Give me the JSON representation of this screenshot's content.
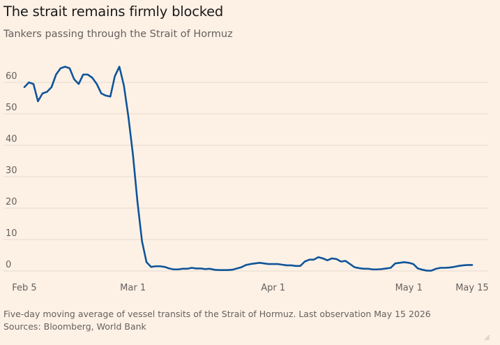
{
  "header": {
    "title": "The strait remains firmly blocked",
    "subtitle": "Tankers passing through the Strait of Hormuz"
  },
  "footer": {
    "note": "Five-day moving average of vessel transits of the Strait of Hormuz. Last observation May 15 2026",
    "sources": "Sources: Bloomberg, World Bank"
  },
  "colors": {
    "background": "#fdf1e6",
    "line": "#0f5499",
    "gridline": "#e6d9ce",
    "text": "#66605c"
  },
  "chart_data": {
    "type": "line",
    "title": "The strait remains firmly blocked",
    "subtitle": "Tankers passing through the Strait of Hormuz",
    "xlabel": "",
    "ylabel": "",
    "ylim": [
      0,
      65
    ],
    "xlim": [
      "2026-02-05",
      "2026-05-15"
    ],
    "grid": "horizontal",
    "legend": "none",
    "x_ticks": [
      {
        "date": "2026-02-05",
        "label": "Feb 5"
      },
      {
        "date": "2026-03-01",
        "label": "Mar 1"
      },
      {
        "date": "2026-04-01",
        "label": "Apr 1"
      },
      {
        "date": "2026-05-01",
        "label": "May 1"
      },
      {
        "date": "2026-05-15",
        "label": "May 15"
      }
    ],
    "y_ticks": [
      0,
      10,
      20,
      30,
      40,
      50,
      60
    ],
    "series": [
      {
        "name": "",
        "color": "#0f5499",
        "x": [
          "2026-02-05",
          "2026-02-06",
          "2026-02-07",
          "2026-02-08",
          "2026-02-09",
          "2026-02-10",
          "2026-02-11",
          "2026-02-12",
          "2026-02-13",
          "2026-02-14",
          "2026-02-15",
          "2026-02-16",
          "2026-02-17",
          "2026-02-18",
          "2026-02-19",
          "2026-02-20",
          "2026-02-21",
          "2026-02-22",
          "2026-02-23",
          "2026-02-24",
          "2026-02-25",
          "2026-02-26",
          "2026-02-27",
          "2026-02-28",
          "2026-03-01",
          "2026-03-02",
          "2026-03-03",
          "2026-03-04",
          "2026-03-05",
          "2026-03-06",
          "2026-03-07",
          "2026-03-08",
          "2026-03-09",
          "2026-03-10",
          "2026-03-11",
          "2026-03-12",
          "2026-03-13",
          "2026-03-14",
          "2026-03-15",
          "2026-03-16",
          "2026-03-17",
          "2026-03-18",
          "2026-03-19",
          "2026-03-20",
          "2026-03-21",
          "2026-03-22",
          "2026-03-23",
          "2026-03-24",
          "2026-03-25",
          "2026-03-26",
          "2026-03-27",
          "2026-03-28",
          "2026-03-29",
          "2026-03-30",
          "2026-03-31",
          "2026-04-01",
          "2026-04-02",
          "2026-04-03",
          "2026-04-04",
          "2026-04-05",
          "2026-04-06",
          "2026-04-07",
          "2026-04-08",
          "2026-04-09",
          "2026-04-10",
          "2026-04-11",
          "2026-04-12",
          "2026-04-13",
          "2026-04-14",
          "2026-04-15",
          "2026-04-16",
          "2026-04-17",
          "2026-04-18",
          "2026-04-19",
          "2026-04-20",
          "2026-04-21",
          "2026-04-22",
          "2026-04-23",
          "2026-04-24",
          "2026-04-25",
          "2026-04-26",
          "2026-04-27",
          "2026-04-28",
          "2026-04-29",
          "2026-04-30",
          "2026-05-01",
          "2026-05-02",
          "2026-05-03",
          "2026-05-04",
          "2026-05-05",
          "2026-05-06",
          "2026-05-07",
          "2026-05-08",
          "2026-05-09",
          "2026-05-10",
          "2026-05-11",
          "2026-05-12",
          "2026-05-13",
          "2026-05-14",
          "2026-05-15"
        ],
        "y": [
          58.5,
          60,
          59.5,
          54,
          56.5,
          57,
          58.5,
          62.5,
          64.5,
          65,
          64.5,
          61,
          59.5,
          62.5,
          62.5,
          61.5,
          59.5,
          56.5,
          55.8,
          55.5,
          62,
          65,
          59,
          49,
          37,
          22,
          9.5,
          2.8,
          1.3,
          1.5,
          1.5,
          1.3,
          0.8,
          0.5,
          0.5,
          0.7,
          0.7,
          1.0,
          0.8,
          0.8,
          0.6,
          0.7,
          0.4,
          0.3,
          0.3,
          0.3,
          0.4,
          0.8,
          1.2,
          1.9,
          2.2,
          2.4,
          2.6,
          2.4,
          2.2,
          2.2,
          2.2,
          2.0,
          1.8,
          1.8,
          1.6,
          1.6,
          3.0,
          3.6,
          3.6,
          4.4,
          4.0,
          3.4,
          4.0,
          3.8,
          3.0,
          3.2,
          2.2,
          1.2,
          0.9,
          0.7,
          0.7,
          0.5,
          0.5,
          0.6,
          0.8,
          1.0,
          2.4,
          2.6,
          2.8,
          2.6,
          2.2,
          0.8,
          0.4,
          0.1,
          0.1,
          0.7,
          1.0,
          1.0,
          1.1,
          1.3,
          1.6,
          1.8,
          1.9,
          1.9
        ]
      }
    ]
  }
}
